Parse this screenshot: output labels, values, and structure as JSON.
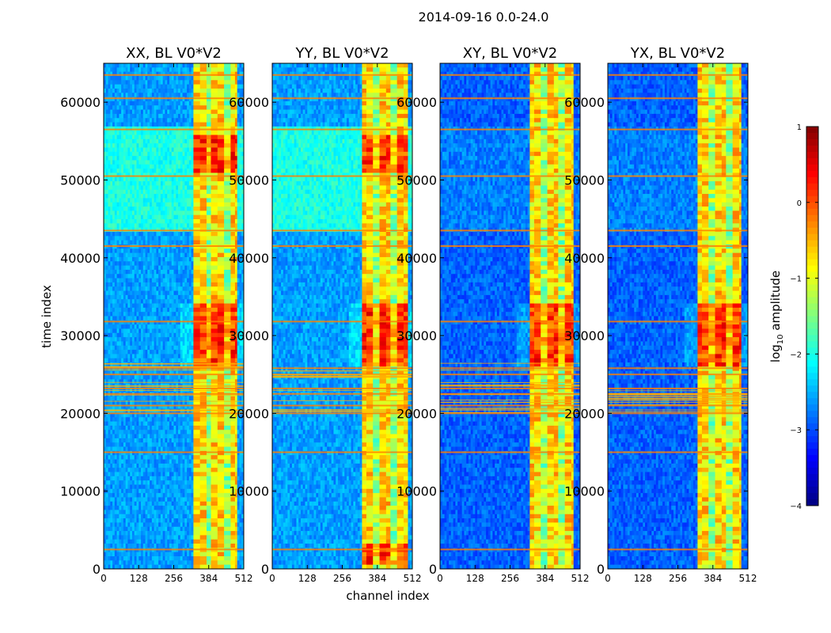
{
  "figure": {
    "suptitle": "2014-09-16 0.0-24.0",
    "ylabel": "time index",
    "xlabel": "channel index"
  },
  "chart_data": {
    "type": "heatmap",
    "colormap": "jet",
    "xlim": [
      0,
      512
    ],
    "ylim": [
      0,
      65000
    ],
    "x_ticks": [
      0,
      128,
      256,
      384,
      512
    ],
    "x_tick_labels": [
      "0",
      "128",
      "256",
      "384",
      "512"
    ],
    "y_ticks": [
      0,
      10000,
      20000,
      30000,
      40000,
      50000,
      60000
    ],
    "y_tick_labels": [
      "0",
      "10000",
      "20000",
      "30000",
      "40000",
      "50000",
      "60000"
    ],
    "panels": [
      {
        "title": "XX, BL V0*V2",
        "background_level": -2.6,
        "high_band": [
          330,
          490
        ]
      },
      {
        "title": "YY, BL V0*V2",
        "background_level": -2.6,
        "high_band": [
          325,
          500
        ]
      },
      {
        "title": "XY, BL V0*V2",
        "background_level": -2.9,
        "high_band": [
          325,
          490
        ]
      },
      {
        "title": "YX, BL V0*V2",
        "background_level": -2.9,
        "high_band": [
          325,
          490
        ]
      }
    ],
    "colorbar": {
      "label_prefix": "log",
      "label_subscript": "10",
      "label_suffix": " amplitude",
      "range": [
        -4,
        1
      ],
      "ticks": [
        -4,
        -3,
        -2,
        -1,
        0,
        1
      ],
      "tick_labels": [
        "−4",
        "−3",
        "−2",
        "−1",
        "0",
        "1"
      ]
    }
  }
}
